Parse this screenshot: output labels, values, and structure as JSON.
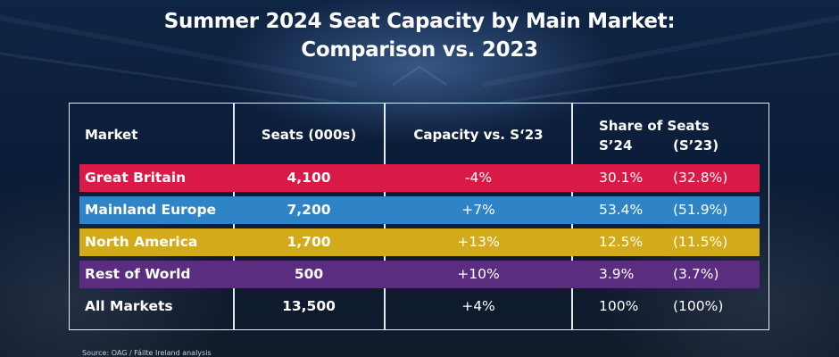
{
  "title_line1": "Summer 2024 Seat Capacity by Main Market:",
  "title_line2": "Comparison vs. 2023",
  "headers": {
    "market": "Market",
    "seats": "Seats (000s)",
    "capacity": "Capacity vs. S‘23",
    "share": "Share of Seats",
    "share_s24": "S’24",
    "share_s23": "(S’23)"
  },
  "colors": {
    "great_britain": "#d91a47",
    "mainland_europe": "#2e84c6",
    "north_america": "#d3ab1a",
    "rest_of_world": "#5a2d81"
  },
  "chart_data": {
    "type": "table",
    "columns": [
      "Market",
      "Seats (000s)",
      "Capacity vs. S‘23",
      "Share of Seats S’24",
      "Share of Seats (S’23)"
    ],
    "rows": [
      {
        "market": "Great Britain",
        "seats": "4,100",
        "capacity": "-4%",
        "share_s24": "30.1%",
        "share_s23": "(32.8%)"
      },
      {
        "market": "Mainland Europe",
        "seats": "7,200",
        "capacity": "+7%",
        "share_s24": "53.4%",
        "share_s23": "(51.9%)"
      },
      {
        "market": "North America",
        "seats": "1,700",
        "capacity": "+13%",
        "share_s24": "12.5%",
        "share_s23": "(11.5%)"
      },
      {
        "market": "Rest of World",
        "seats": "500",
        "capacity": "+10%",
        "share_s24": "3.9%",
        "share_s23": "(3.7%)"
      },
      {
        "market": "All Markets",
        "seats": "13,500",
        "capacity": "+4%",
        "share_s24": "100%",
        "share_s23": "(100%)"
      }
    ]
  },
  "source": "Source: OAG / Fáilte Ireland analysis"
}
